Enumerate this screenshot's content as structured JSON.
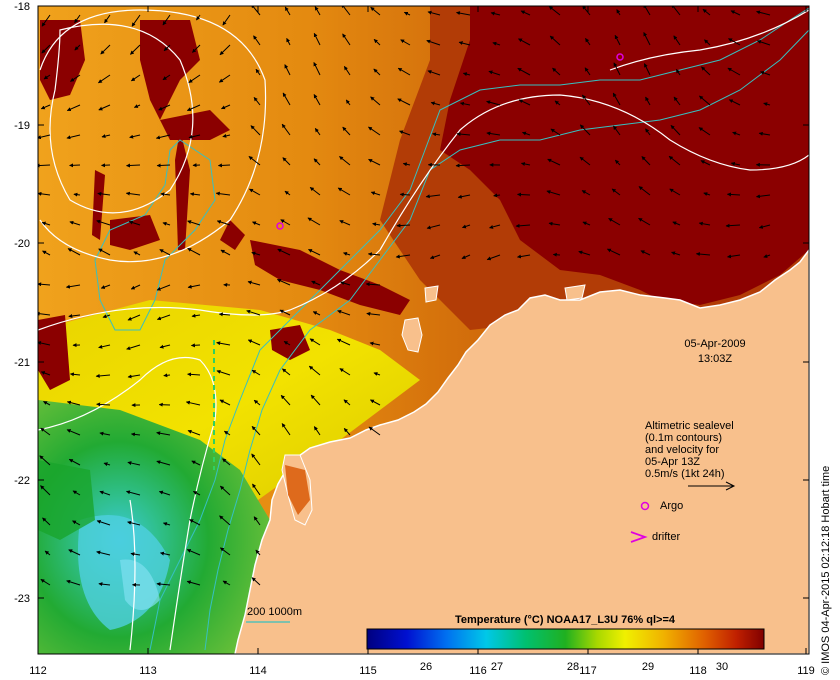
{
  "map": {
    "lon_ticks": [
      "112",
      "113",
      "114",
      "115",
      "116",
      "117",
      "118",
      "119"
    ],
    "lat_ticks": [
      "-18",
      "-19",
      "-20",
      "-21",
      "-22",
      "-23"
    ],
    "date_label": "05-Apr-2009",
    "time_label": "13:03Z",
    "legend_lines": [
      "Altimetric sealevel",
      "(0.1m contours)",
      "and velocity for",
      "05-Apr 13Z",
      "0.5m/s (1kt 24h)"
    ],
    "argo_label": "Argo",
    "drifter_label": "drifter",
    "isobath_label": "200  1000m",
    "credit": "© IMOS 04-Apr-2015 02:12:18 Hobart time"
  },
  "colorbar": {
    "title": "Temperature (°C) NOAA17_L3U 76% ql>=4",
    "ticks": [
      "26",
      "27",
      "28",
      "29",
      "30"
    ]
  },
  "colors": {
    "land": "#f8c08c",
    "cloud": "#8b0000",
    "isobath": "#37c0c0",
    "sealevel_contour": "#ffffff",
    "argo": "#e000e0"
  }
}
